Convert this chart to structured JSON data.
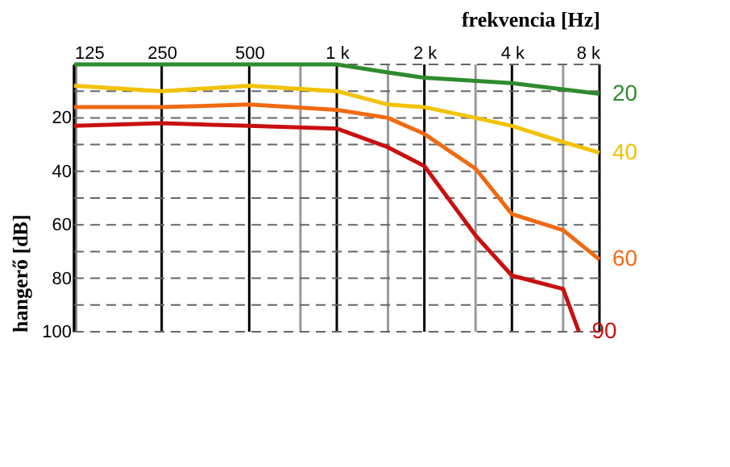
{
  "chart_data": {
    "type": "line",
    "xlabel": "frekvencia [Hz]",
    "ylabel": "hangerő [dB]",
    "xlim": [
      125,
      8000
    ],
    "ylim": [
      100,
      0
    ],
    "xticks": [
      125,
      250,
      500,
      {
        "value": 750,
        "label": null
      },
      {
        "value": 1000,
        "label": "1 k"
      },
      {
        "value": 1500,
        "label": null
      },
      {
        "value": 2000,
        "label": "2 k"
      },
      {
        "value": 3000,
        "label": null
      },
      {
        "value": 4000,
        "label": "4 k"
      },
      {
        "value": 6000,
        "label": null
      },
      {
        "value": 8000,
        "label": "8 k"
      }
    ],
    "yticks": [
      {
        "value": 0,
        "label": null
      },
      {
        "value": 10,
        "label": null
      },
      20,
      {
        "value": 30,
        "label": null
      },
      40,
      {
        "value": 50,
        "label": null
      },
      60,
      {
        "value": 70,
        "label": null
      },
      80,
      {
        "value": 90,
        "label": null
      },
      100
    ],
    "grid": true,
    "log": "x",
    "legend": false,
    "marker": "none",
    "line_style": "solid",
    "series": [
      {
        "name": "20",
        "color": "#2e8b2e",
        "x": [
          125,
          250,
          500,
          1000,
          1500,
          2000,
          4000,
          8000
        ],
        "values": [
          0,
          0,
          0,
          0,
          3,
          5,
          7,
          11
        ]
      },
      {
        "name": "40",
        "color": "#f2c200",
        "x": [
          125,
          250,
          500,
          1000,
          1500,
          2000,
          3000,
          4000,
          6000,
          8000
        ],
        "values": [
          8,
          10,
          8,
          10,
          15,
          16,
          20,
          23,
          29,
          33
        ]
      },
      {
        "name": "60",
        "color": "#f06a10",
        "x": [
          125,
          250,
          500,
          1000,
          1500,
          2000,
          3000,
          4000,
          6000,
          8000
        ],
        "values": [
          16,
          16,
          15,
          17,
          20,
          26,
          39,
          56,
          62,
          73
        ]
      },
      {
        "name": "90",
        "color": "#c81010",
        "x": [
          125,
          250,
          500,
          1000,
          1500,
          2000,
          3000,
          4000,
          6000,
          6800
        ],
        "values": [
          23,
          22,
          23,
          24,
          31,
          38,
          64,
          79,
          84,
          100
        ]
      }
    ]
  }
}
